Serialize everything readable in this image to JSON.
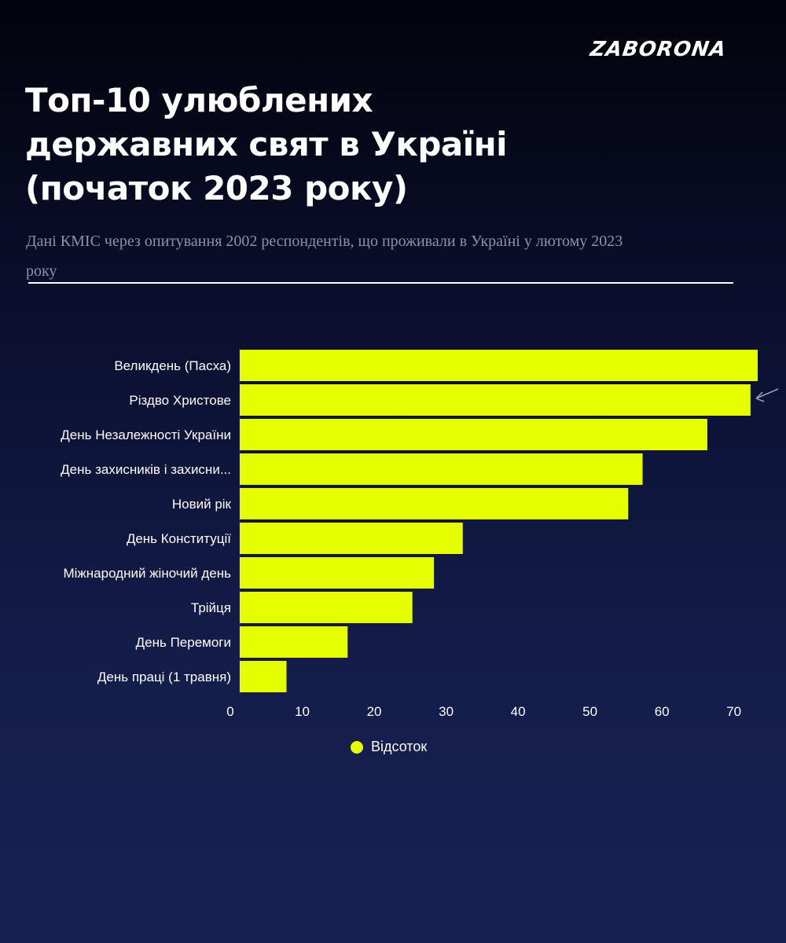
{
  "brand": {
    "logo_text": "ZABORONA"
  },
  "header": {
    "title_lines": [
      "Топ-10 улюблених",
      "державних свят в Україні",
      "(початок 2023 року)"
    ],
    "subtitle": "Дані КМІС через опитування 2002 респондентів, що проживали в Україні у лютому 2023 року"
  },
  "colors": {
    "bar": "#e6ff00",
    "background_top": "#02030b",
    "background_bottom": "#172254",
    "text": "#ffffff",
    "subtitle": "#8e91a8"
  },
  "legend": {
    "label": "Відсоток"
  },
  "chart_data": {
    "type": "bar",
    "orientation": "horizontal",
    "categories": [
      "Великдень (Пасха)",
      "Різдво Христове",
      "День Незалежності України",
      "День захисників і захисни...",
      "Новий рік",
      "День Конституції",
      "Міжнародний жіночий день",
      "Трійця",
      "День Перемоги",
      "День праці (1 травня)"
    ],
    "series": [
      {
        "name": "Відсоток",
        "values": [
          72,
          71,
          65,
          56,
          54,
          31,
          27,
          24,
          15,
          6.5
        ]
      }
    ],
    "xlim": [
      0,
      72
    ],
    "xticks": [
      0,
      10,
      20,
      30,
      40,
      50,
      60,
      70
    ],
    "grid": false,
    "legend_position": "bottom"
  }
}
